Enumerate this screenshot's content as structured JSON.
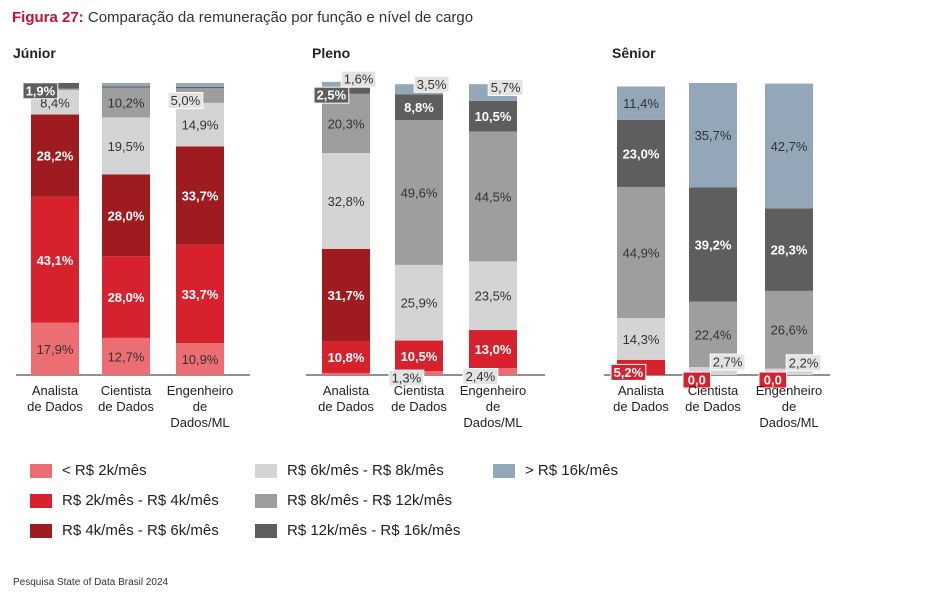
{
  "title": {
    "label": "Figura 27:",
    "text": " Comparação da remuneração por função e nível de cargo"
  },
  "source": "Pesquisa State of Data Brasil 2024",
  "legend": [
    {
      "label": "< R$ 2k/mês",
      "color": "#ec6e72"
    },
    {
      "label": "R$ 2k/mês - R$ 4k/mês",
      "color": "#d7222e"
    },
    {
      "label": "R$ 4k/mês - R$ 6k/mês",
      "color": "#9e1b20"
    },
    {
      "label": "R$ 6k/mês - R$ 8k/mês",
      "color": "#d4d4d4"
    },
    {
      "label": "R$ 8k/mês - R$ 12k/mês",
      "color": "#9e9e9e"
    },
    {
      "label": "R$ 12k/mês - R$ 16k/mês",
      "color": "#5e5e5e"
    },
    {
      "label": "> R$ 16k/mês",
      "color": "#93a7b8"
    }
  ],
  "chart_data": [
    {
      "type": "bar",
      "stacked": true,
      "title": "Júnior",
      "categories": [
        "Analista de Dados",
        "Cientista de Dados",
        "Engenheiro de Dados/ML"
      ],
      "series": [
        {
          "name": "< R$ 2k/mês",
          "values": [
            17.9,
            12.7,
            10.9
          ],
          "labels": [
            "17,9%",
            "12,7%",
            "10,9%"
          ]
        },
        {
          "name": "R$ 2k/mês - R$ 4k/mês",
          "values": [
            43.1,
            28.0,
            33.7
          ],
          "labels": [
            "43,1%",
            "28,0%",
            "33,7%"
          ]
        },
        {
          "name": "R$ 4k/mês - R$ 6k/mês",
          "values": [
            28.2,
            28.0,
            33.7
          ],
          "labels": [
            "28,2%",
            "28,0%",
            "33,7%"
          ]
        },
        {
          "name": "R$ 6k/mês - R$ 8k/mês",
          "values": [
            8.4,
            19.5,
            14.9
          ],
          "labels": [
            "8,4%",
            "19,5%",
            "14,9%"
          ]
        },
        {
          "name": "R$ 8k/mês - R$ 12k/mês",
          "values": [
            0.5,
            10.2,
            5.0
          ],
          "labels": [
            "",
            "10,2%",
            "5,0%"
          ]
        },
        {
          "name": "R$ 12k/mês - R$ 16k/mês",
          "values": [
            1.9,
            0.5,
            0.5
          ],
          "labels": [
            "1,9%",
            "",
            ""
          ]
        },
        {
          "name": "> R$ 16k/mês",
          "values": [
            0.0,
            1.1,
            1.3
          ],
          "labels": [
            "",
            "",
            ""
          ]
        }
      ]
    },
    {
      "type": "bar",
      "stacked": true,
      "title": "Pleno",
      "categories": [
        "Analista de Dados",
        "Cientista de Dados",
        "Engenheiro de Dados/ML"
      ],
      "series": [
        {
          "name": "< R$ 2k/mês",
          "values": [
            0.7,
            1.3,
            2.4
          ],
          "labels": [
            "",
            "1,3%",
            "2,4%"
          ]
        },
        {
          "name": "R$ 2k/mês - R$ 4k/mês",
          "values": [
            10.8,
            10.5,
            13.0
          ],
          "labels": [
            "10,8%",
            "10,5%",
            "13,0%"
          ]
        },
        {
          "name": "R$ 4k/mês - R$ 6k/mês",
          "values": [
            31.7,
            0.0,
            0.0
          ],
          "labels": [
            "31,7%",
            "",
            ""
          ]
        },
        {
          "name": "R$ 6k/mês - R$ 8k/mês",
          "values": [
            32.8,
            25.9,
            23.5
          ],
          "labels": [
            "32,8%",
            "25,9%",
            "23,5%"
          ]
        },
        {
          "name": "R$ 8k/mês - R$ 12k/mês",
          "values": [
            20.3,
            49.6,
            44.5
          ],
          "labels": [
            "20,3%",
            "49,6%",
            "44,5%"
          ]
        },
        {
          "name": "R$ 12k/mês - R$ 16k/mês",
          "values": [
            2.5,
            8.8,
            10.5
          ],
          "labels": [
            "2,5%",
            "8,8%",
            "10,5%"
          ]
        },
        {
          "name": "> R$ 16k/mês",
          "values": [
            1.6,
            3.5,
            5.7
          ],
          "labels": [
            "1,6%",
            "3,5%",
            "5,7%"
          ]
        }
      ]
    },
    {
      "type": "bar",
      "stacked": true,
      "title": "Sênior",
      "categories": [
        "Analista de Dados",
        "Cientista de Dados",
        "Engenheiro de Dados/ML"
      ],
      "series": [
        {
          "name": "< R$ 2k/mês",
          "values": [
            0.0,
            0.0,
            0.0
          ],
          "labels": [
            "",
            "",
            ""
          ]
        },
        {
          "name": "R$ 2k/mês - R$ 4k/mês",
          "values": [
            5.2,
            0.0,
            0.0
          ],
          "labels": [
            "5,2%",
            "0,0",
            "0,0"
          ]
        },
        {
          "name": "R$ 4k/mês - R$ 6k/mês",
          "values": [
            0.0,
            0.0,
            0.0
          ],
          "labels": [
            "",
            "",
            ""
          ]
        },
        {
          "name": "R$ 6k/mês - R$ 8k/mês",
          "values": [
            14.3,
            2.7,
            2.2
          ],
          "labels": [
            "14,3%",
            "2,7%",
            "2,2%"
          ]
        },
        {
          "name": "R$ 8k/mês - R$ 12k/mês",
          "values": [
            44.9,
            22.4,
            26.6
          ],
          "labels": [
            "44,9%",
            "22,4%",
            "26,6%"
          ]
        },
        {
          "name": "R$ 12k/mês - R$ 16k/mês",
          "values": [
            23.0,
            39.2,
            28.3
          ],
          "labels": [
            "23,0%",
            "39,2%",
            "28,3%"
          ]
        },
        {
          "name": "> R$ 16k/mês",
          "values": [
            11.4,
            35.7,
            42.7
          ],
          "labels": [
            "11,4%",
            "35,7%",
            "42,7%"
          ]
        }
      ]
    }
  ]
}
